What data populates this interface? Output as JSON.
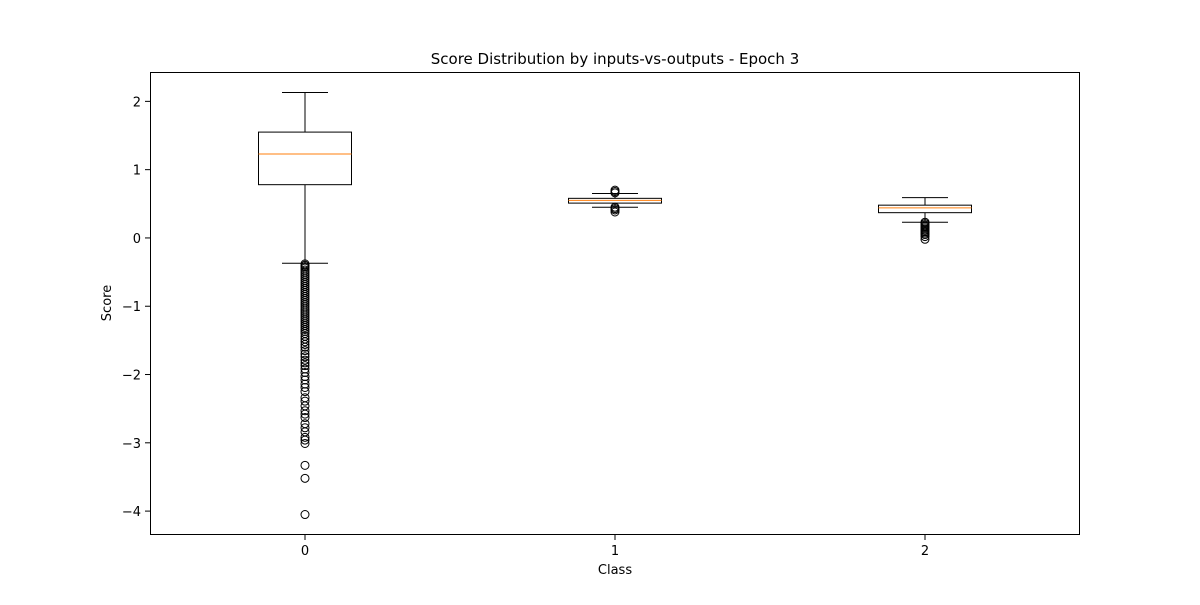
{
  "chart_data": {
    "type": "box",
    "title": "Score Distribution by inputs-vs-outputs - Epoch 3",
    "xlabel": "Class",
    "ylabel": "Score",
    "categories": [
      "0",
      "1",
      "2"
    ],
    "xlim": [
      0.5,
      3.5
    ],
    "ylim": [
      -4.35,
      2.43
    ],
    "yticks": [
      2,
      1,
      0,
      -1,
      -2,
      -3,
      -4
    ],
    "ytick_labels": [
      "2",
      "1",
      "0",
      "−1",
      "−2",
      "−3",
      "−4"
    ],
    "grid": false,
    "legend": "none",
    "boxes": [
      {
        "category": "0",
        "whisker_low": -0.37,
        "q1": 0.78,
        "median": 1.23,
        "q3": 1.55,
        "whisker_high": 2.13,
        "outliers": [
          -0.38,
          -0.4,
          -0.42,
          -0.44,
          -0.47,
          -0.5,
          -0.53,
          -0.56,
          -0.59,
          -0.62,
          -0.65,
          -0.68,
          -0.71,
          -0.74,
          -0.77,
          -0.8,
          -0.83,
          -0.86,
          -0.89,
          -0.92,
          -0.95,
          -0.98,
          -1.01,
          -1.04,
          -1.07,
          -1.1,
          -1.13,
          -1.16,
          -1.19,
          -1.22,
          -1.25,
          -1.28,
          -1.31,
          -1.34,
          -1.37,
          -1.4,
          -1.44,
          -1.48,
          -1.52,
          -1.56,
          -1.6,
          -1.65,
          -1.7,
          -1.74,
          -1.79,
          -1.83,
          -1.87,
          -1.92,
          -1.97,
          -2.03,
          -2.08,
          -2.14,
          -2.19,
          -2.25,
          -2.34,
          -2.39,
          -2.46,
          -2.53,
          -2.58,
          -2.63,
          -2.72,
          -2.78,
          -2.84,
          -2.92,
          -2.96,
          -3.01,
          -3.33,
          -3.52,
          -4.05
        ]
      },
      {
        "category": "1",
        "whisker_low": 0.45,
        "q1": 0.51,
        "median": 0.55,
        "q3": 0.58,
        "whisker_high": 0.65,
        "outliers": [
          0.38,
          0.41,
          0.43,
          0.45,
          0.66,
          0.68,
          0.7
        ]
      },
      {
        "category": "2",
        "whisker_low": 0.23,
        "q1": 0.37,
        "median": 0.44,
        "q3": 0.48,
        "whisker_high": 0.59,
        "outliers": [
          0.23,
          0.21,
          0.19,
          0.17,
          0.15,
          0.13,
          0.11,
          0.09,
          0.07,
          0.05,
          0.02,
          -0.02
        ]
      }
    ],
    "colors": {
      "box_edge": "#000000",
      "median": "#ff7f0e",
      "flier_edge": "#000000"
    }
  }
}
